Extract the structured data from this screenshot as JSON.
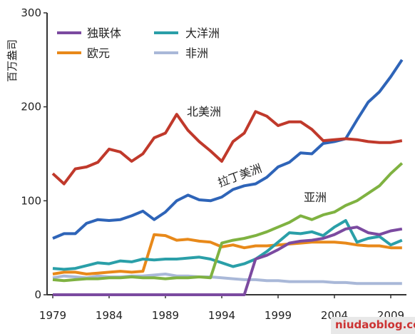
{
  "chart_data": {
    "type": "line",
    "ylabel": "百万盎司",
    "ylim": [
      0,
      300
    ],
    "yticks": [
      0,
      100,
      200,
      300
    ],
    "xlim": [
      1979,
      2010
    ],
    "xticks": [
      "1979",
      "1984",
      "1989",
      "1994",
      "1999",
      "2004",
      "2009"
    ],
    "x": [
      1979,
      1980,
      1981,
      1982,
      1983,
      1984,
      1985,
      1986,
      1987,
      1988,
      1989,
      1990,
      1991,
      1992,
      1993,
      1994,
      1995,
      1996,
      1997,
      1998,
      1999,
      2000,
      2001,
      2002,
      2003,
      2004,
      2005,
      2006,
      2007,
      2008,
      2009,
      2010
    ],
    "series": [
      {
        "name": "北美洲",
        "color": "#c0392b",
        "values": [
          129,
          118,
          134,
          136,
          141,
          155,
          152,
          142,
          150,
          167,
          172,
          192,
          175,
          163,
          153,
          142,
          163,
          172,
          195,
          190,
          180,
          184,
          184,
          176,
          164,
          165,
          166,
          165,
          163,
          162,
          162,
          164
        ]
      },
      {
        "name": "拉丁美洲",
        "color": "#2e64b8",
        "values": [
          60,
          65,
          65,
          76,
          80,
          79,
          80,
          84,
          89,
          80,
          88,
          100,
          106,
          101,
          100,
          104,
          112,
          116,
          118,
          125,
          136,
          141,
          151,
          150,
          161,
          163,
          166,
          186,
          205,
          216,
          232,
          250
        ]
      },
      {
        "name": "亚洲",
        "color": "#7fb241",
        "values": [
          16,
          15,
          16,
          17,
          17,
          18,
          18,
          19,
          18,
          18,
          17,
          18,
          18,
          19,
          18,
          55,
          58,
          60,
          63,
          67,
          72,
          77,
          84,
          80,
          85,
          88,
          95,
          100,
          108,
          116,
          129,
          140
        ]
      },
      {
        "name": "大洋洲",
        "color": "#2a9fa8",
        "values": [
          28,
          27,
          28,
          31,
          34,
          33,
          36,
          35,
          38,
          37,
          38,
          38,
          39,
          40,
          38,
          34,
          30,
          33,
          38,
          46,
          56,
          66,
          65,
          67,
          63,
          72,
          79,
          56,
          60,
          62,
          53,
          58
        ]
      },
      {
        "name": "欧元",
        "color": "#e8891a",
        "values": [
          22,
          24,
          24,
          22,
          23,
          24,
          25,
          24,
          25,
          64,
          63,
          58,
          59,
          57,
          56,
          51,
          53,
          50,
          52,
          52,
          53,
          54,
          55,
          56,
          56,
          56,
          55,
          53,
          52,
          52,
          50,
          50
        ]
      },
      {
        "name": "独联体",
        "color": "#7b4aa0",
        "values": [
          0,
          0,
          0,
          0,
          0,
          0,
          0,
          0,
          0,
          0,
          0,
          0,
          0,
          0,
          0,
          0,
          0,
          0,
          38,
          42,
          48,
          55,
          57,
          58,
          60,
          64,
          70,
          72,
          66,
          64,
          68,
          70
        ]
      },
      {
        "name": "非洲",
        "color": "#a9b8d8",
        "values": [
          18,
          20,
          19,
          18,
          20,
          19,
          19,
          20,
          20,
          21,
          22,
          20,
          20,
          19,
          19,
          18,
          17,
          16,
          16,
          15,
          15,
          14,
          14,
          14,
          14,
          13,
          13,
          12,
          12,
          12,
          12,
          12
        ]
      }
    ],
    "legend": [
      "独联体",
      "大洋洲",
      "欧元",
      "非洲"
    ],
    "legend_placement": "top-left",
    "annotations": [
      "北美洲",
      "拉丁美洲",
      "亚洲"
    ]
  },
  "watermark": "niudaoblog.com"
}
